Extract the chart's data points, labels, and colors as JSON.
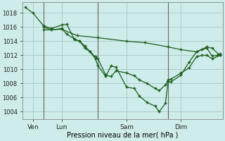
{
  "title": "",
  "xlabel": "Pression niveau de la mer( hPa )",
  "background_color": "#ceecea",
  "grid_color": "#aaccc8",
  "line_color": "#1a5c1a",
  "ylim": [
    1003.0,
    1019.5
  ],
  "xlim": [
    -0.5,
    38.0
  ],
  "xtick_positions": [
    1.5,
    7.0,
    19.5,
    30.0
  ],
  "xtick_labels": [
    "Ven",
    "Lun",
    "Sam",
    "Dim"
  ],
  "vlines": [
    3.5,
    14.0,
    27.5
  ],
  "line_slow": [
    [
      3.5,
      1015.6
    ],
    [
      7.0,
      1015.7
    ],
    [
      10.0,
      1014.8
    ],
    [
      14.0,
      1014.5
    ],
    [
      19.5,
      1014.0
    ],
    [
      23.0,
      1013.8
    ],
    [
      27.5,
      1013.2
    ],
    [
      30.0,
      1012.8
    ],
    [
      33.0,
      1012.5
    ],
    [
      35.0,
      1013.2
    ],
    [
      36.0,
      1013.0
    ],
    [
      37.5,
      1012.0
    ]
  ],
  "line_steep": [
    [
      0.0,
      1018.8
    ],
    [
      1.5,
      1018.0
    ],
    [
      3.5,
      1016.2
    ],
    [
      5.0,
      1015.8
    ],
    [
      7.0,
      1016.3
    ],
    [
      8.0,
      1016.4
    ],
    [
      9.5,
      1014.2
    ],
    [
      10.5,
      1014.0
    ],
    [
      11.5,
      1013.0
    ],
    [
      12.5,
      1012.5
    ],
    [
      13.5,
      1011.5
    ],
    [
      14.0,
      1010.5
    ],
    [
      15.5,
      1009.0
    ],
    [
      16.5,
      1010.5
    ],
    [
      17.5,
      1010.3
    ],
    [
      19.5,
      1007.5
    ],
    [
      21.0,
      1007.3
    ],
    [
      22.0,
      1006.2
    ],
    [
      23.5,
      1005.3
    ],
    [
      25.0,
      1004.8
    ],
    [
      25.8,
      1004.0
    ],
    [
      27.0,
      1005.2
    ],
    [
      27.5,
      1008.3
    ],
    [
      28.0,
      1008.2
    ],
    [
      30.0,
      1009.2
    ],
    [
      31.5,
      1011.0
    ],
    [
      33.0,
      1012.5
    ],
    [
      34.0,
      1012.8
    ],
    [
      35.0,
      1013.0
    ],
    [
      36.0,
      1011.9
    ],
    [
      37.0,
      1012.0
    ],
    [
      37.5,
      1012.2
    ]
  ],
  "line_mid": [
    [
      3.5,
      1016.0
    ],
    [
      5.0,
      1015.6
    ],
    [
      7.0,
      1015.8
    ],
    [
      8.0,
      1015.0
    ],
    [
      9.5,
      1014.3
    ],
    [
      10.5,
      1014.0
    ],
    [
      11.5,
      1013.3
    ],
    [
      12.5,
      1012.5
    ],
    [
      13.5,
      1011.8
    ],
    [
      14.0,
      1011.5
    ],
    [
      15.5,
      1009.2
    ],
    [
      16.5,
      1009.0
    ],
    [
      17.5,
      1009.8
    ],
    [
      19.5,
      1009.5
    ],
    [
      21.0,
      1009.1
    ],
    [
      22.0,
      1008.5
    ],
    [
      23.5,
      1008.0
    ],
    [
      25.0,
      1007.3
    ],
    [
      25.8,
      1007.0
    ],
    [
      27.0,
      1007.8
    ],
    [
      27.5,
      1008.5
    ],
    [
      28.0,
      1008.6
    ],
    [
      30.0,
      1009.5
    ],
    [
      31.5,
      1010.2
    ],
    [
      33.0,
      1011.8
    ],
    [
      34.0,
      1012.0
    ],
    [
      35.0,
      1012.0
    ],
    [
      36.0,
      1011.5
    ],
    [
      37.5,
      1012.0
    ]
  ]
}
